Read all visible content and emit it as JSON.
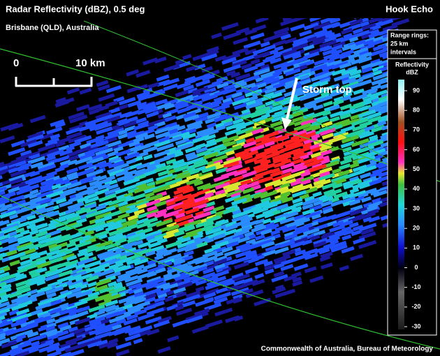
{
  "header": {
    "title": "Radar Reflectivity (dBZ), 0.5 deg",
    "subtitle": "Brisbane (QLD), Australia",
    "label": "Hook Echo"
  },
  "scale_bar": {
    "start": "0",
    "end": "10 km"
  },
  "annotation": "Storm top",
  "legend": {
    "range_rings": [
      "Range rings:",
      "25 km",
      "intervals"
    ],
    "title": "Reflectivity",
    "unit": "dBZ",
    "ticks": [
      90,
      80,
      70,
      60,
      50,
      40,
      30,
      20,
      10,
      0,
      -10,
      -20,
      -30
    ]
  },
  "credit": "Commonwealth of Australia, Bureau of Meteorology"
}
